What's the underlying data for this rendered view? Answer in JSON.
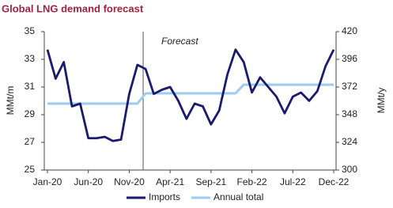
{
  "chart_data": {
    "type": "line",
    "title": "Global LNG demand forecast",
    "annotation": "Forecast",
    "categories": [
      "Jan-20",
      null,
      null,
      null,
      null,
      "Jun-20",
      null,
      null,
      null,
      null,
      "Nov-20",
      null,
      null,
      null,
      null,
      "Apr-21",
      null,
      null,
      null,
      null,
      "Sep-21",
      null,
      null,
      null,
      null,
      "Feb-22",
      null,
      null,
      null,
      null,
      "Jul-22",
      null,
      null,
      null,
      null,
      "Dec-22"
    ],
    "ylabel": "MMt/m",
    "y2label": "MMt/y",
    "ylim": [
      25,
      35
    ],
    "yticks": [
      25,
      27,
      29,
      31,
      33,
      35
    ],
    "y2lim": [
      300,
      420
    ],
    "y2ticks": [
      300,
      324,
      348,
      372,
      396,
      420
    ],
    "series": [
      {
        "name": "Imports",
        "color": "#1b1a6e",
        "values": [
          33.7,
          31.6,
          32.8,
          29.6,
          29.8,
          27.3,
          27.3,
          27.4,
          27.1,
          27.2,
          30.5,
          32.6,
          32.3,
          30.5,
          30.8,
          31.0,
          30.0,
          28.7,
          29.8,
          29.6,
          28.3,
          29.3,
          31.9,
          33.7,
          32.8,
          30.6,
          31.7,
          31.0,
          30.3,
          29.1,
          30.3,
          30.6,
          30.0,
          30.7,
          32.5,
          33.7
        ]
      },
      {
        "name": "Annual total",
        "color": "#9ecbf0",
        "axis": "y2",
        "values": [
          357.6,
          357.6,
          357.6,
          357.6,
          357.6,
          357.6,
          357.6,
          357.6,
          357.6,
          357.6,
          357.6,
          357.6,
          366.5,
          366.5,
          366.5,
          366.5,
          366.5,
          366.5,
          366.5,
          366.5,
          366.5,
          366.5,
          366.5,
          366.5,
          374,
          374,
          374,
          374,
          374,
          374,
          374,
          374,
          374,
          374,
          374,
          374
        ]
      }
    ]
  }
}
